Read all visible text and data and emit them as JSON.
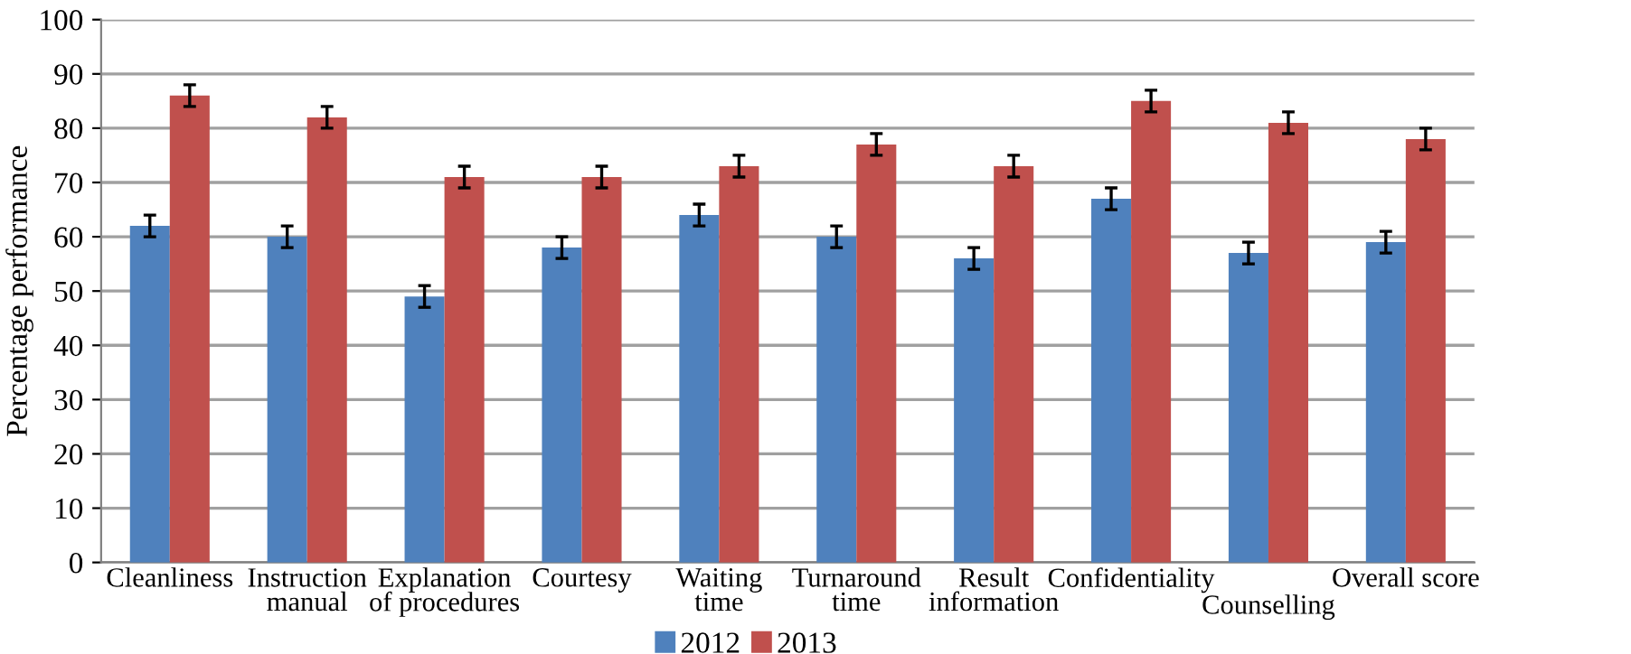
{
  "chart_data": {
    "type": "bar",
    "ylabel": "Percentage performance",
    "categories": [
      "Cleanliness",
      "Instruction\nmanual",
      "Explanation\nof procedures",
      "Courtesy",
      "Waiting\ntime",
      "Turnaround\ntime",
      "Result\ninformation",
      "Confidentiality",
      "Counselling",
      "Overall score"
    ],
    "series": [
      {
        "name": "2012",
        "color": "#4f81bd",
        "values": [
          62,
          60,
          49,
          58,
          64,
          60,
          56,
          67,
          57,
          59
        ],
        "errors": [
          2,
          2,
          2,
          2,
          2,
          2,
          2,
          2,
          2,
          2
        ]
      },
      {
        "name": "2013",
        "color": "#c0504d",
        "values": [
          86,
          82,
          71,
          71,
          73,
          77,
          73,
          85,
          81,
          78
        ],
        "errors": [
          2,
          2,
          2,
          2,
          2,
          2,
          2,
          2,
          2,
          2
        ]
      }
    ],
    "ylim": [
      0,
      100
    ],
    "yticks": [
      0,
      10,
      20,
      30,
      40,
      50,
      60,
      70,
      80,
      90,
      100
    ],
    "grid": "y",
    "legend": "bottom"
  }
}
